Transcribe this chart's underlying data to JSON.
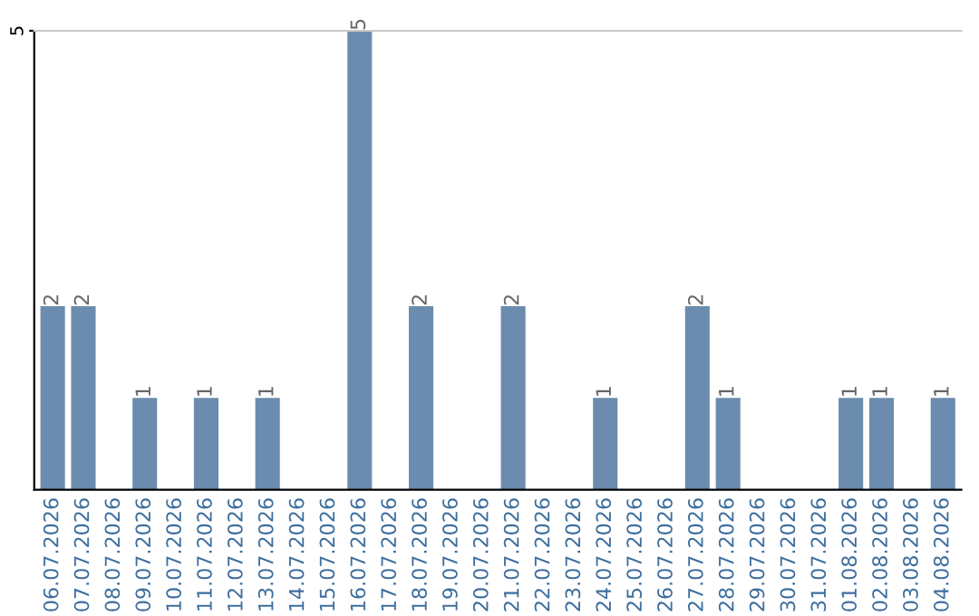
{
  "chart_data": {
    "type": "bar",
    "categories": [
      "06.07.2026",
      "07.07.2026",
      "08.07.2026",
      "09.07.2026",
      "10.07.2026",
      "11.07.2026",
      "12.07.2026",
      "13.07.2026",
      "14.07.2026",
      "15.07.2026",
      "16.07.2026",
      "17.07.2026",
      "18.07.2026",
      "19.07.2026",
      "20.07.2026",
      "21.07.2026",
      "22.07.2026",
      "23.07.2026",
      "24.07.2026",
      "25.07.2026",
      "26.07.2026",
      "27.07.2026",
      "28.07.2026",
      "29.07.2026",
      "30.07.2026",
      "31.07.2026",
      "01.08.2026",
      "02.08.2026",
      "03.08.2026",
      "04.08.2026"
    ],
    "values": [
      2,
      2,
      0,
      1,
      0,
      1,
      0,
      1,
      0,
      0,
      5,
      0,
      2,
      0,
      0,
      2,
      0,
      0,
      1,
      0,
      0,
      2,
      1,
      0,
      0,
      0,
      1,
      1,
      0,
      1
    ],
    "value_labels": [
      "2",
      "2",
      null,
      "1",
      null,
      "1",
      null,
      "1",
      null,
      null,
      "5",
      null,
      "2",
      null,
      null,
      "2",
      null,
      null,
      "1",
      null,
      null,
      "2",
      "1",
      null,
      null,
      null,
      "1",
      "1",
      null,
      "1"
    ],
    "color": "#6b8cae",
    "ylim": [
      0,
      5
    ],
    "yticks": [
      5
    ]
  }
}
